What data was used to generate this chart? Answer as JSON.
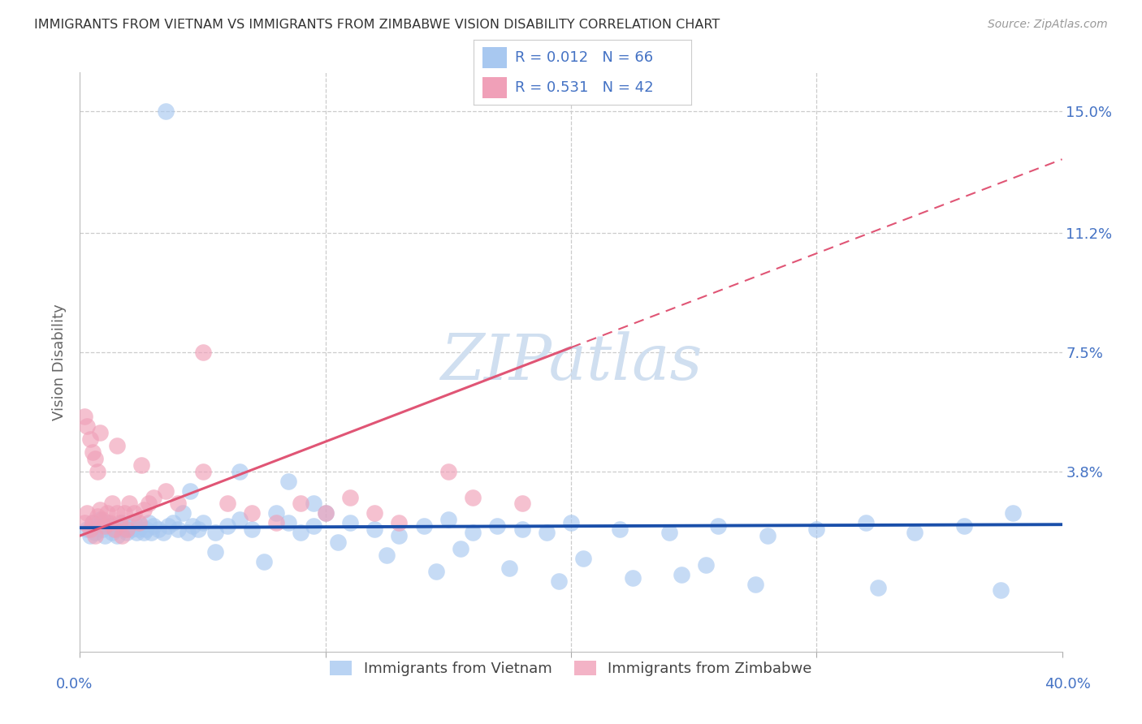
{
  "title": "IMMIGRANTS FROM VIETNAM VS IMMIGRANTS FROM ZIMBABWE VISION DISABILITY CORRELATION CHART",
  "source": "Source: ZipAtlas.com",
  "ylabel": "Vision Disability",
  "right_yticklabels": [
    "",
    "3.8%",
    "7.5%",
    "11.2%",
    "15.0%"
  ],
  "right_ytick_vals": [
    0.0,
    0.038,
    0.075,
    0.112,
    0.15
  ],
  "xmin": 0.0,
  "xmax": 0.4,
  "ymin": -0.018,
  "ymax": 0.162,
  "color_vietnam": "#A8C8F0",
  "color_zimbabwe": "#F0A0B8",
  "line_color_vietnam": "#1a4faa",
  "line_color_zimbabwe": "#e05575",
  "watermark": "ZIPatlas",
  "vietnam_x": [
    0.003,
    0.004,
    0.005,
    0.006,
    0.007,
    0.008,
    0.009,
    0.01,
    0.011,
    0.012,
    0.013,
    0.014,
    0.015,
    0.016,
    0.017,
    0.018,
    0.019,
    0.02,
    0.021,
    0.022,
    0.023,
    0.024,
    0.025,
    0.026,
    0.027,
    0.028,
    0.029,
    0.03,
    0.032,
    0.034,
    0.036,
    0.038,
    0.04,
    0.042,
    0.044,
    0.046,
    0.048,
    0.05,
    0.055,
    0.06,
    0.065,
    0.07,
    0.08,
    0.085,
    0.09,
    0.095,
    0.1,
    0.11,
    0.12,
    0.13,
    0.14,
    0.15,
    0.16,
    0.17,
    0.18,
    0.19,
    0.2,
    0.22,
    0.24,
    0.26,
    0.28,
    0.3,
    0.32,
    0.34,
    0.36,
    0.38
  ],
  "vietnam_y": [
    0.02,
    0.018,
    0.022,
    0.019,
    0.021,
    0.023,
    0.02,
    0.018,
    0.022,
    0.021,
    0.019,
    0.02,
    0.018,
    0.021,
    0.022,
    0.02,
    0.019,
    0.021,
    0.02,
    0.022,
    0.019,
    0.02,
    0.021,
    0.019,
    0.02,
    0.022,
    0.019,
    0.021,
    0.02,
    0.019,
    0.021,
    0.022,
    0.02,
    0.025,
    0.019,
    0.021,
    0.02,
    0.022,
    0.019,
    0.021,
    0.023,
    0.02,
    0.025,
    0.022,
    0.019,
    0.021,
    0.025,
    0.022,
    0.02,
    0.018,
    0.021,
    0.023,
    0.019,
    0.021,
    0.02,
    0.019,
    0.022,
    0.02,
    0.019,
    0.021,
    0.018,
    0.02,
    0.022,
    0.019,
    0.021,
    0.025
  ],
  "vietnam_y_outliers": [
    0.15,
    0.038,
    0.035,
    0.032,
    0.028,
    0.012,
    0.008,
    0.005,
    0.003,
    0.002,
    0.001,
    0.014,
    0.011,
    0.009,
    0.016,
    0.013,
    0.007,
    0.004,
    0.006,
    0.01
  ],
  "vietnam_x_outliers": [
    0.035,
    0.065,
    0.085,
    0.045,
    0.095,
    0.125,
    0.175,
    0.225,
    0.275,
    0.325,
    0.375,
    0.155,
    0.205,
    0.255,
    0.105,
    0.055,
    0.145,
    0.195,
    0.245,
    0.075
  ],
  "zimbabwe_x": [
    0.002,
    0.003,
    0.004,
    0.005,
    0.006,
    0.007,
    0.008,
    0.009,
    0.01,
    0.011,
    0.012,
    0.013,
    0.014,
    0.015,
    0.016,
    0.017,
    0.018,
    0.019,
    0.02,
    0.022,
    0.024,
    0.026,
    0.028,
    0.03,
    0.035,
    0.04,
    0.05,
    0.06,
    0.07,
    0.08,
    0.09,
    0.1,
    0.11,
    0.12,
    0.13,
    0.15,
    0.16,
    0.18,
    0.05,
    0.025,
    0.008,
    0.015
  ],
  "zimbabwe_y": [
    0.022,
    0.025,
    0.02,
    0.022,
    0.018,
    0.024,
    0.026,
    0.023,
    0.021,
    0.025,
    0.022,
    0.028,
    0.02,
    0.025,
    0.022,
    0.018,
    0.025,
    0.02,
    0.028,
    0.025,
    0.022,
    0.026,
    0.028,
    0.03,
    0.032,
    0.028,
    0.038,
    0.028,
    0.025,
    0.022,
    0.028,
    0.025,
    0.03,
    0.025,
    0.022,
    0.038,
    0.03,
    0.028,
    0.075,
    0.04,
    0.05,
    0.046
  ],
  "zimbabwe_extra_low_x": [
    0.002,
    0.003,
    0.004,
    0.005,
    0.006,
    0.007
  ],
  "zimbabwe_extra_low_y": [
    0.055,
    0.052,
    0.048,
    0.044,
    0.042,
    0.038
  ],
  "zw_line_x0": 0.0,
  "zw_line_y0": 0.018,
  "zw_line_x1": 0.4,
  "zw_line_y1": 0.135,
  "vn_line_x0": 0.0,
  "vn_line_y0": 0.0205,
  "vn_line_x1": 0.4,
  "vn_line_y1": 0.0215
}
